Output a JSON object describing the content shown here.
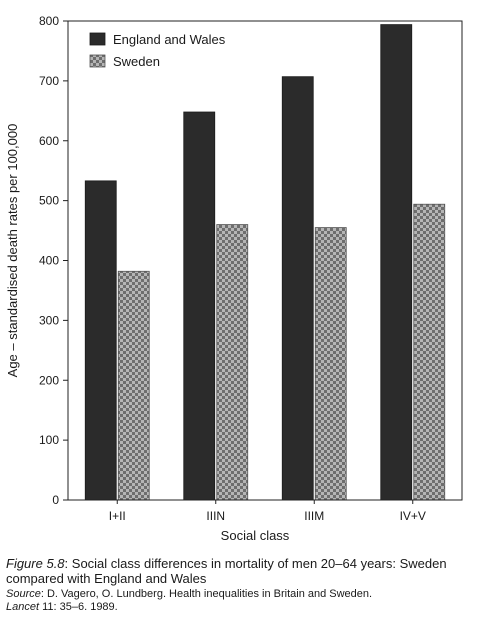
{
  "chart_data": {
    "type": "bar",
    "categories": [
      "I+II",
      "IIIN",
      "IIIM",
      "IV+V"
    ],
    "series": [
      {
        "name": "England and Wales",
        "values": [
          533,
          648,
          707,
          794
        ],
        "color": "#2b2b2b",
        "pattern": "solid-dark"
      },
      {
        "name": "Sweden",
        "values": [
          382,
          460,
          455,
          494
        ],
        "color": "#9a9a9a",
        "pattern": "checkered"
      }
    ],
    "title": "",
    "xlabel": "Social class",
    "ylabel": "Age – standardised death rates per 100,000",
    "ylim": [
      0,
      800
    ],
    "yticks": [
      0,
      100,
      200,
      300,
      400,
      500,
      600,
      700,
      800
    ],
    "grid": false,
    "legend": "top-left"
  },
  "caption": {
    "figure_label": "Figure 5.8",
    "figure_text": ": Social class differences in mortality of men 20–64 years: Sweden compared with England and Wales",
    "source_label": "Source",
    "source_text": ": D. Vagero, O. Lundberg. Health inequalities in Britain and Sweden.",
    "journal": "Lancet",
    "journal_ref": " 11: 35–6. 1989."
  }
}
